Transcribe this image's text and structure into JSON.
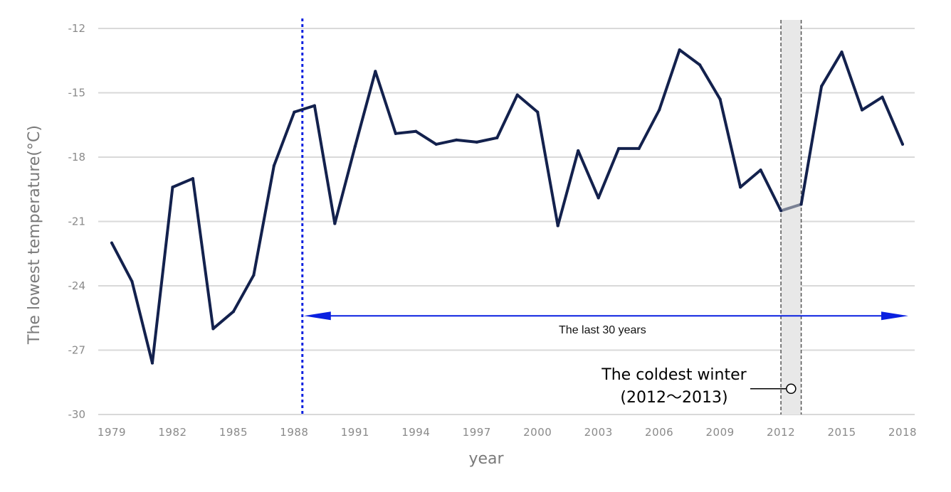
{
  "chart_data": {
    "type": "line",
    "xlabel": "year",
    "ylabel": "The lowest temperature(°C)",
    "xlim": [
      1979,
      2018
    ],
    "ylim": [
      -30,
      -12
    ],
    "y_ticks": [
      -12,
      -15,
      -18,
      -21,
      -24,
      -27,
      -30
    ],
    "x_ticks": [
      1979,
      1982,
      1985,
      1988,
      1991,
      1994,
      1997,
      2000,
      2003,
      2006,
      2009,
      2012,
      2015,
      2018
    ],
    "grid": "horizontal",
    "x": [
      1979,
      1980,
      1981,
      1982,
      1983,
      1984,
      1985,
      1986,
      1987,
      1988,
      1989,
      1990,
      1991,
      1992,
      1993,
      1994,
      1995,
      1996,
      1997,
      1998,
      1999,
      2000,
      2001,
      2002,
      2003,
      2004,
      2005,
      2006,
      2007,
      2008,
      2009,
      2010,
      2011,
      2012,
      2013,
      2014,
      2015,
      2016,
      2017,
      2018
    ],
    "values": [
      -22.0,
      -23.8,
      -27.6,
      -19.4,
      -19.0,
      -26.0,
      -25.2,
      -23.5,
      -18.4,
      -15.9,
      -15.6,
      -21.1,
      -17.5,
      -14.0,
      -16.9,
      -16.8,
      -17.4,
      -17.2,
      -17.3,
      -17.1,
      -15.1,
      -15.9,
      -21.2,
      -17.7,
      -19.9,
      -17.6,
      -17.6,
      -15.8,
      -13.0,
      -13.7,
      -15.3,
      -19.4,
      -18.6,
      -20.5,
      -20.2,
      -14.7,
      -13.1,
      -15.8,
      -15.2,
      -17.4
    ],
    "line_color": "#13214d",
    "highlight_segment_color": "#7a8194",
    "annotations": {
      "last_30_years": {
        "label": "The last 30 years",
        "start": 1988.4,
        "end": 2018,
        "y": -25.4,
        "color": "#0a20e0"
      },
      "coldest_winter": {
        "line1": "The coldest winter",
        "line2": "(2012～2013)",
        "band_start": 2012,
        "band_end": 2013,
        "marker_x": 2012.5,
        "marker_y": -28.8,
        "band_color": "#e8e8e8"
      }
    }
  }
}
